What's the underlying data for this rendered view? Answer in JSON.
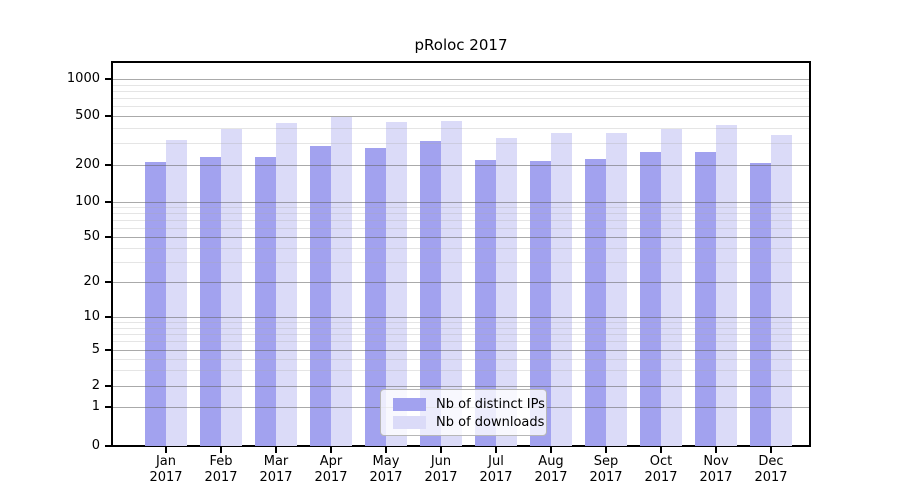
{
  "title": "pRoloc 2017",
  "chart_data": {
    "type": "bar",
    "title": "pRoloc 2017",
    "categories": [
      "Jan",
      "Feb",
      "Mar",
      "Apr",
      "May",
      "Jun",
      "Jul",
      "Aug",
      "Sep",
      "Oct",
      "Nov",
      "Dec"
    ],
    "category_year": "2017",
    "series": [
      {
        "name": "Nb of distinct IPs",
        "color": "#a2a2ef",
        "values": [
          212,
          232,
          232,
          285,
          276,
          313,
          219,
          215,
          223,
          256,
          256,
          207
        ]
      },
      {
        "name": "Nb of downloads",
        "color": "#dbdbf8",
        "values": [
          320,
          391,
          437,
          488,
          445,
          452,
          331,
          364,
          365,
          392,
          424,
          352
        ]
      }
    ],
    "xlabel": "",
    "ylabel": "",
    "y_ticks": [
      0,
      1,
      2,
      5,
      10,
      20,
      50,
      100,
      200,
      500,
      1000
    ],
    "y_scale": "log-like with zero baseline",
    "ylim": [
      0,
      1400
    ],
    "grid": "horizontal major + minor, drawn over translucent bars",
    "legend_position": "bottom-center"
  },
  "colors": {
    "background": "#ffffff",
    "bar_distinct_ips": "#a2a2ef",
    "bar_downloads": "#dbdbf8",
    "grid_major": "#aaaaaa",
    "grid_minor": "#e2e2e2",
    "axis": "#000000"
  }
}
